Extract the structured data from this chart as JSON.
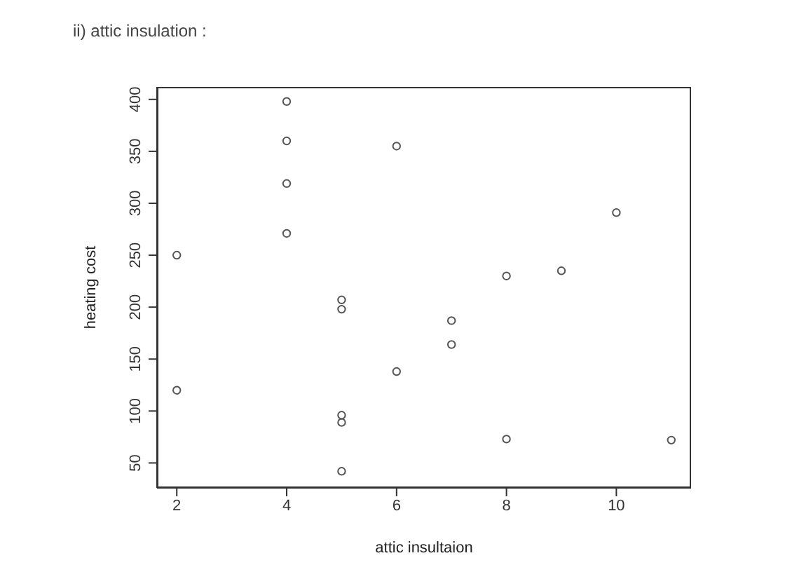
{
  "chart_data": {
    "type": "scatter",
    "title": "ii) attic insulation :",
    "xlabel": "attic insultaion",
    "ylabel": "heating cost",
    "x": [
      2,
      2,
      4,
      4,
      4,
      4,
      5,
      5,
      5,
      5,
      5,
      6,
      6,
      7,
      7,
      8,
      8,
      9,
      10,
      11
    ],
    "values": [
      250,
      120,
      398,
      360,
      319,
      271,
      207,
      198,
      96,
      89,
      42,
      355,
      138,
      187,
      164,
      230,
      73,
      235,
      291,
      72
    ],
    "color": "#555555",
    "marker": "circle",
    "grid": false,
    "legend": false,
    "xlim": [
      1.64,
      11.36
    ],
    "xticks": [
      2,
      4,
      6,
      8,
      10
    ],
    "ylim": [
      26,
      412
    ],
    "yticks": [
      50,
      100,
      150,
      200,
      250,
      300,
      350,
      400
    ]
  }
}
